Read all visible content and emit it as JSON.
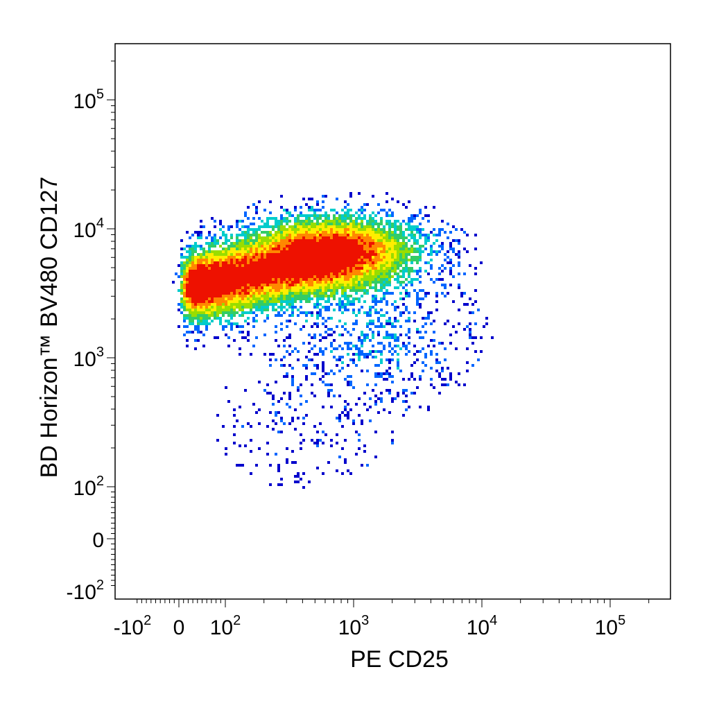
{
  "chart_data": {
    "type": "heatmap",
    "subtype": "flow-cytometry-density-scatter",
    "title": "",
    "xlabel": "PE  CD25",
    "ylabel": "BD Horizon™ BV480 CD127",
    "x_scale": "biexponential",
    "y_scale": "biexponential",
    "xlim": [
      -300,
      250000
    ],
    "ylim": [
      -250,
      250000
    ],
    "grid": false,
    "legend": "none",
    "x_ticks": [
      {
        "value": -100,
        "base": "-10",
        "exp": "2"
      },
      {
        "value": 0,
        "base": "0",
        "exp": ""
      },
      {
        "value": 100,
        "base": "10",
        "exp": "2"
      },
      {
        "value": 1000,
        "base": "10",
        "exp": "3"
      },
      {
        "value": 10000,
        "base": "10",
        "exp": "4"
      },
      {
        "value": 100000,
        "base": "10",
        "exp": "5"
      }
    ],
    "y_ticks": [
      {
        "value": -100,
        "base": "-10",
        "exp": "2"
      },
      {
        "value": 0,
        "base": "0",
        "exp": ""
      },
      {
        "value": 100,
        "base": "10",
        "exp": "2"
      },
      {
        "value": 1000,
        "base": "10",
        "exp": "3"
      },
      {
        "value": 10000,
        "base": "10",
        "exp": "4"
      },
      {
        "value": 100000,
        "base": "10",
        "exp": "5"
      }
    ],
    "density_colors": [
      "#0000cc",
      "#0066ff",
      "#00cccc",
      "#33cc66",
      "#99dd00",
      "#ffee00",
      "#ff8800",
      "#ee1100"
    ],
    "populations": [
      {
        "x_center": 40,
        "y_center": 3500,
        "relative_density": 1.0
      },
      {
        "x_center": 700,
        "y_center": 7000,
        "relative_density": 0.9
      },
      {
        "x_center": 250,
        "y_center": 4500,
        "relative_density": 0.55
      },
      {
        "x_center": 1500,
        "y_center": 1500,
        "relative_density": 0.15
      },
      {
        "x_center": 400,
        "y_center": 300,
        "relative_density": 0.05
      }
    ]
  }
}
